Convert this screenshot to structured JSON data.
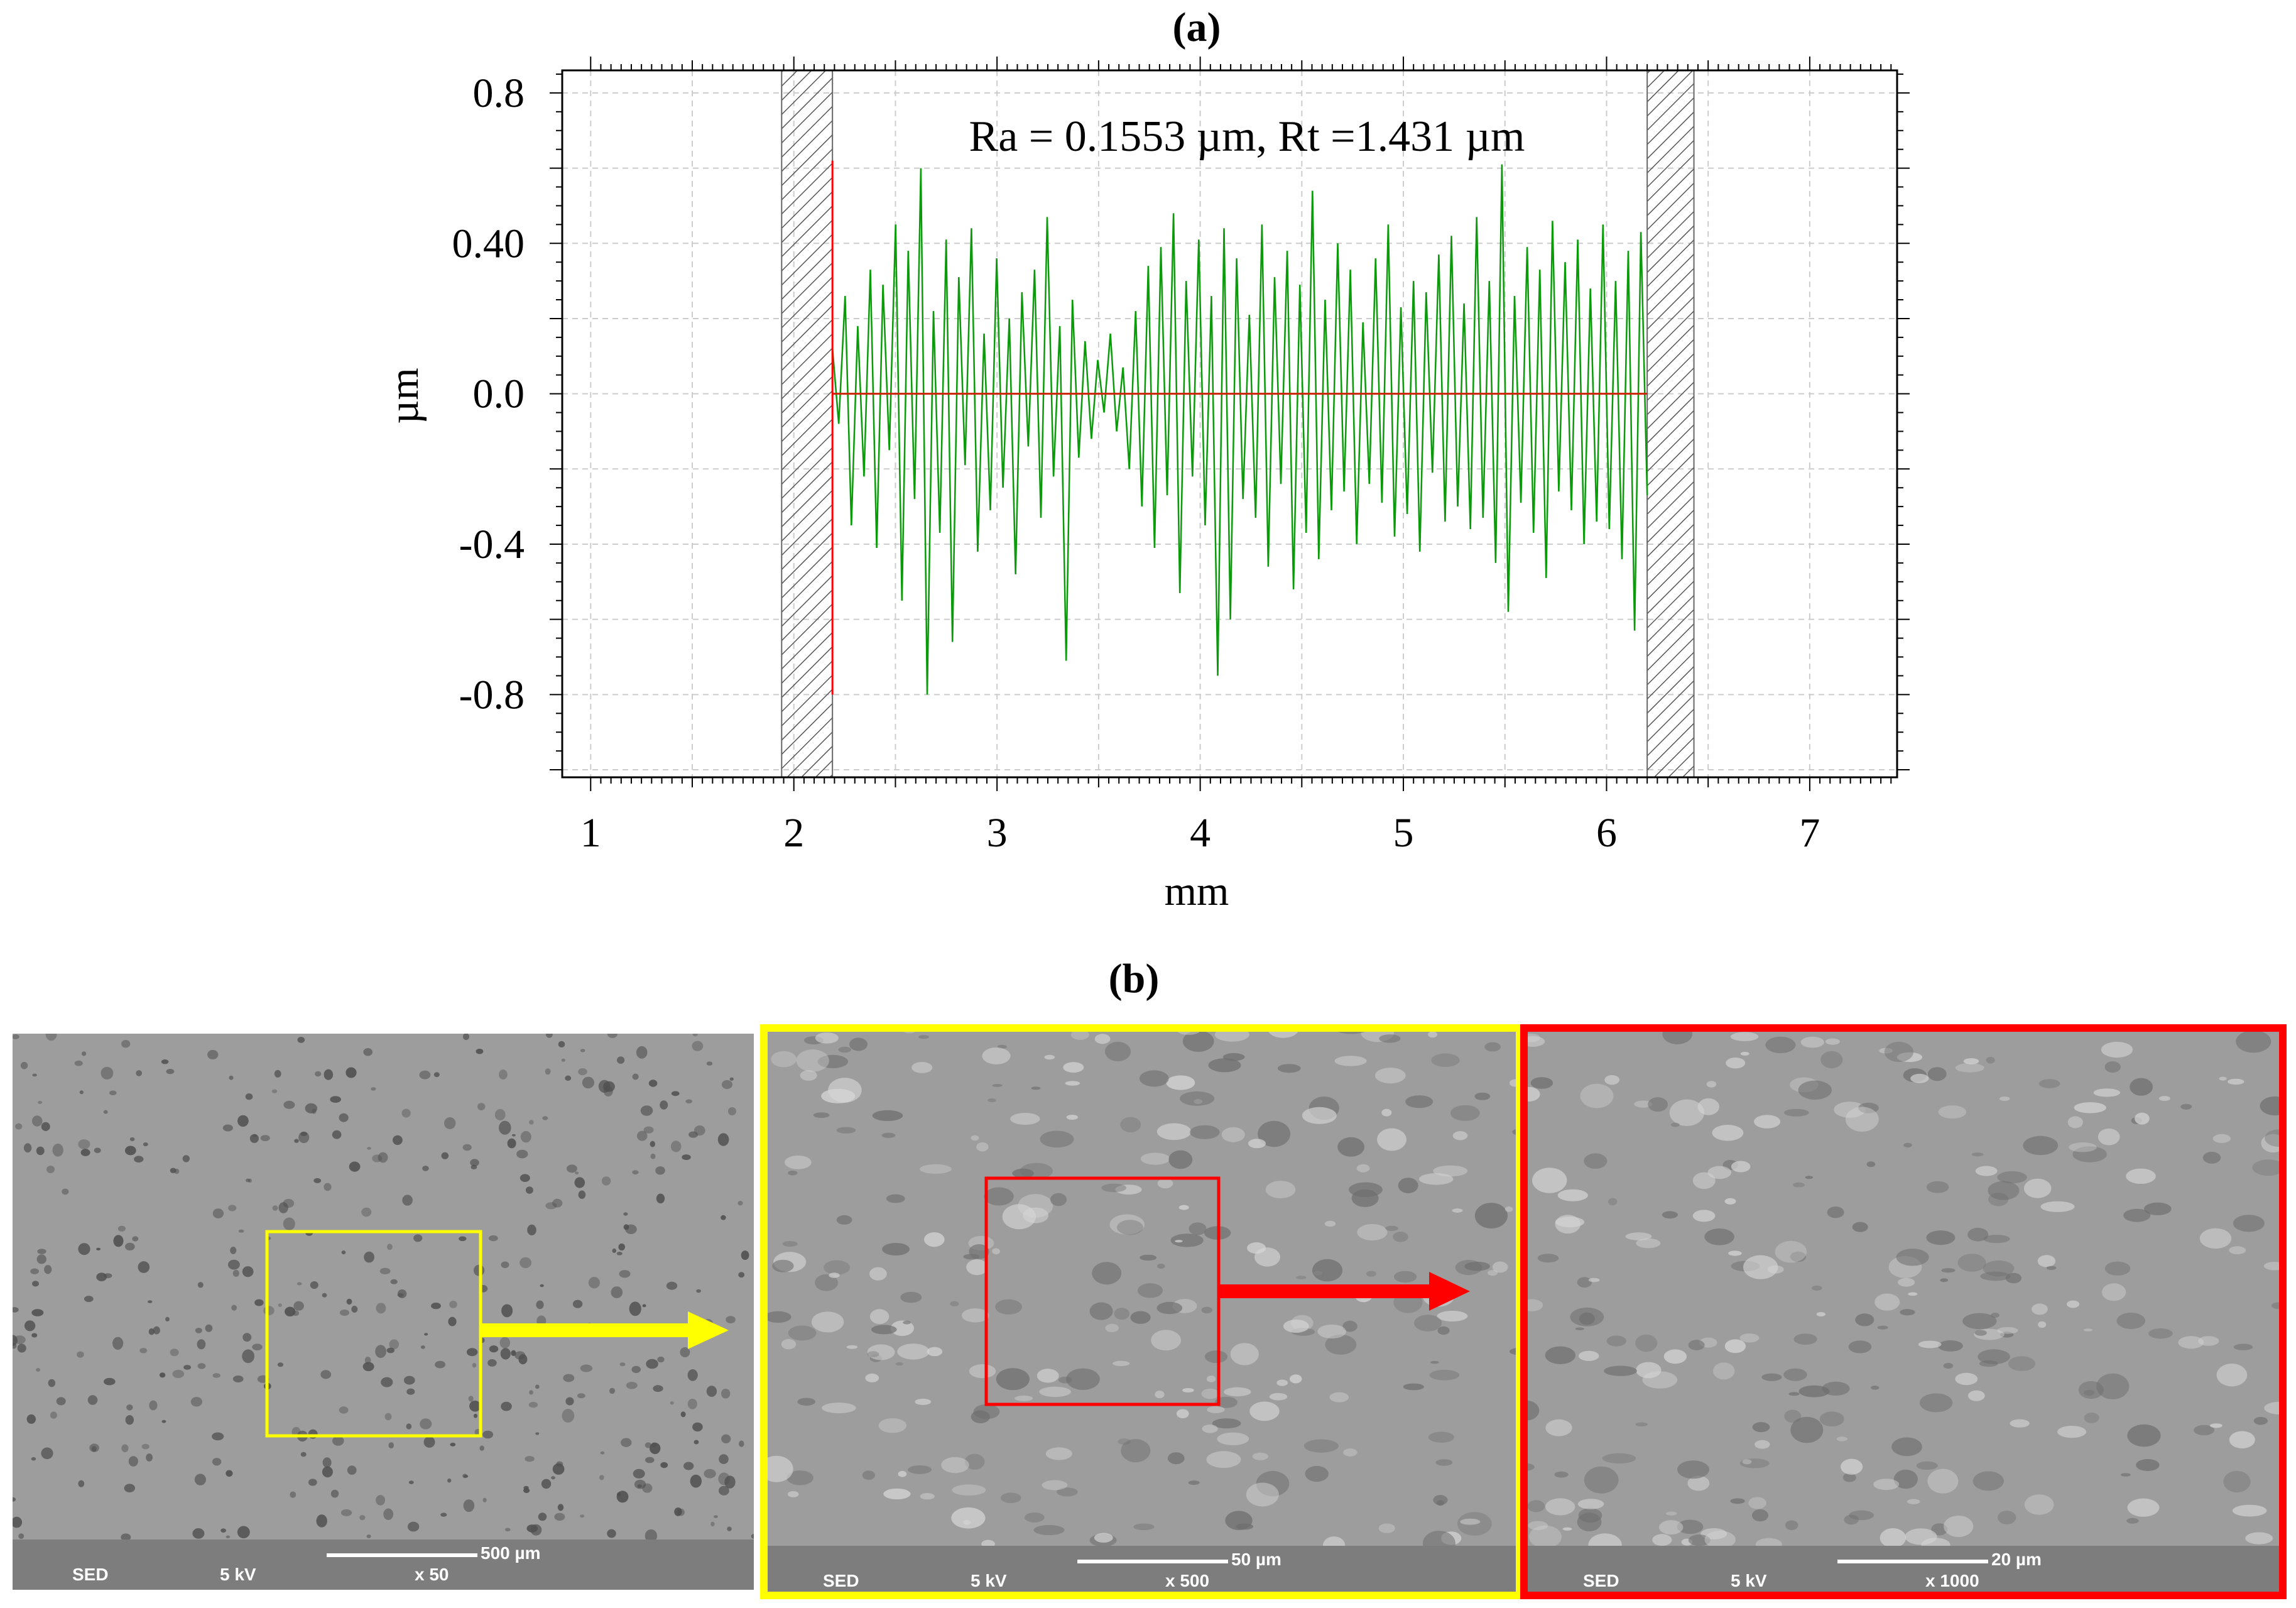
{
  "panels": {
    "a_label": "(a)",
    "b_label": "(b)"
  },
  "chart_data": {
    "type": "line",
    "title": "(a)",
    "annotation": "Ra = 0.1553 µm, Rt =1.431 µm",
    "xlabel": "mm",
    "ylabel": "µm",
    "xlim": [
      0.86,
      7.43
    ],
    "ylim": [
      -1.02,
      0.86
    ],
    "xticks": [
      1,
      2,
      3,
      4,
      5,
      6,
      7
    ],
    "xtick_labels": [
      "1",
      "2",
      "3",
      "4",
      "5",
      "6",
      "7"
    ],
    "yticks": [
      0.8,
      0.4,
      0.0,
      -0.4,
      -0.8
    ],
    "ytick_labels": [
      "0.8",
      "0.40",
      "0.0",
      "-0.4",
      "-0.8"
    ],
    "grid": true,
    "excluded_regions": [
      [
        1.94,
        2.19
      ],
      [
        6.2,
        6.43
      ]
    ],
    "cursor_x": 2.19,
    "cursor_range": [
      -0.8,
      0.62
    ],
    "series": [
      {
        "name": "roughness profile",
        "color": "#0a9a0a",
        "x_range": [
          2.19,
          6.2
        ],
        "values": [
          0.12,
          -0.08,
          0.26,
          -0.35,
          0.18,
          -0.22,
          0.33,
          -0.41,
          0.29,
          -0.15,
          0.45,
          -0.55,
          0.38,
          -0.28,
          0.6,
          -0.8,
          0.22,
          -0.37,
          0.41,
          -0.66,
          0.31,
          -0.19,
          0.44,
          -0.42,
          0.16,
          -0.31,
          0.36,
          -0.25,
          0.2,
          -0.48,
          0.27,
          -0.14,
          0.33,
          -0.33,
          0.47,
          -0.22,
          0.18,
          -0.71,
          0.25,
          -0.17,
          0.14,
          -0.12,
          0.09,
          -0.05,
          0.16,
          -0.1,
          0.07,
          -0.2,
          0.22,
          -0.3,
          0.34,
          -0.41,
          0.39,
          -0.27,
          0.48,
          -0.53,
          0.3,
          -0.22,
          0.41,
          -0.35,
          0.26,
          -0.75,
          0.44,
          -0.6,
          0.36,
          -0.28,
          0.21,
          -0.33,
          0.45,
          -0.46,
          0.31,
          -0.24,
          0.38,
          -0.52,
          0.29,
          -0.37,
          0.54,
          -0.44,
          0.25,
          -0.31,
          0.4,
          -0.26,
          0.33,
          -0.4,
          0.19,
          -0.24,
          0.36,
          -0.29,
          0.45,
          -0.38,
          0.23,
          -0.32,
          0.3,
          -0.42,
          0.27,
          -0.21,
          0.37,
          -0.34,
          0.42,
          -0.3,
          0.24,
          -0.36,
          0.47,
          -0.33,
          0.3,
          -0.45,
          0.61,
          -0.58,
          0.26,
          -0.29,
          0.39,
          -0.37,
          0.33,
          -0.49,
          0.46,
          -0.26,
          0.35,
          -0.31,
          0.41,
          -0.4,
          0.28,
          -0.34,
          0.45,
          -0.36,
          0.3,
          -0.44,
          0.38,
          -0.63,
          0.43,
          -0.27
        ]
      }
    ]
  },
  "sem_images": [
    {
      "info_left": "SED",
      "info_mid": "5 kV",
      "info_right": "x 50",
      "scale": "500 µm",
      "frame_color": "none"
    },
    {
      "info_left": "SED",
      "info_mid": "5 kV",
      "info_right": "x 500",
      "scale": "50 µm",
      "frame_color": "#ffff00"
    },
    {
      "info_left": "SED",
      "info_mid": "5 kV",
      "info_right": "x 1000",
      "scale": "20 µm",
      "frame_color": "#ff0000"
    }
  ],
  "colors": {
    "zoom1": "#ffff00",
    "zoom2": "#ff0000",
    "grid": "#cccccc",
    "profile": "#0a9a0a",
    "baseline": "#cc2200"
  }
}
